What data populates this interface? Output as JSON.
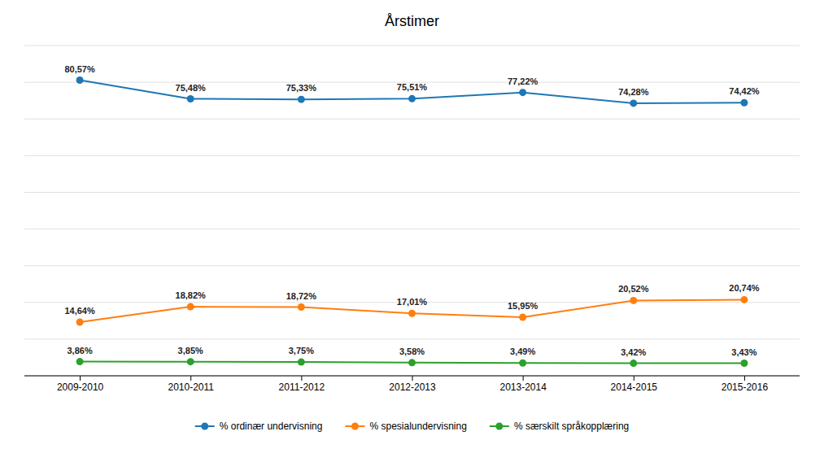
{
  "chart_data": {
    "type": "line",
    "title": "Årstimer",
    "categories": [
      "2009-2010",
      "2010-2011",
      "2011-2012",
      "2012-2013",
      "2013-2014",
      "2014-2015",
      "2015-2016"
    ],
    "series": [
      {
        "name": "% ordinær undervisning",
        "values": [
          80.57,
          75.48,
          75.33,
          75.51,
          77.22,
          74.28,
          74.42
        ],
        "value_labels": [
          "80,57%",
          "75,48%",
          "75,33%",
          "75,51%",
          "77,22%",
          "74,28%",
          "74,42%"
        ]
      },
      {
        "name": "% spesialundervisning",
        "values": [
          14.64,
          18.82,
          18.72,
          17.01,
          15.95,
          20.52,
          20.74
        ],
        "value_labels": [
          "14,64%",
          "18,82%",
          "18,72%",
          "17,01%",
          "15,95%",
          "20,52%",
          "20,74%"
        ]
      },
      {
        "name": "% særskilt språkopplæring",
        "values": [
          3.86,
          3.85,
          3.75,
          3.58,
          3.49,
          3.42,
          3.43
        ],
        "value_labels": [
          "3,86%",
          "3,85%",
          "3,75%",
          "3,58%",
          "3,49%",
          "3,42%",
          "3,43%"
        ]
      }
    ],
    "ylim": [
      0,
      90
    ],
    "yticks": [
      0,
      10,
      20,
      30,
      40,
      50,
      60,
      70,
      80,
      90
    ],
    "grid": true,
    "tick_labels": "x",
    "data_labels": true,
    "marker": "circle",
    "legend": "bottom"
  }
}
